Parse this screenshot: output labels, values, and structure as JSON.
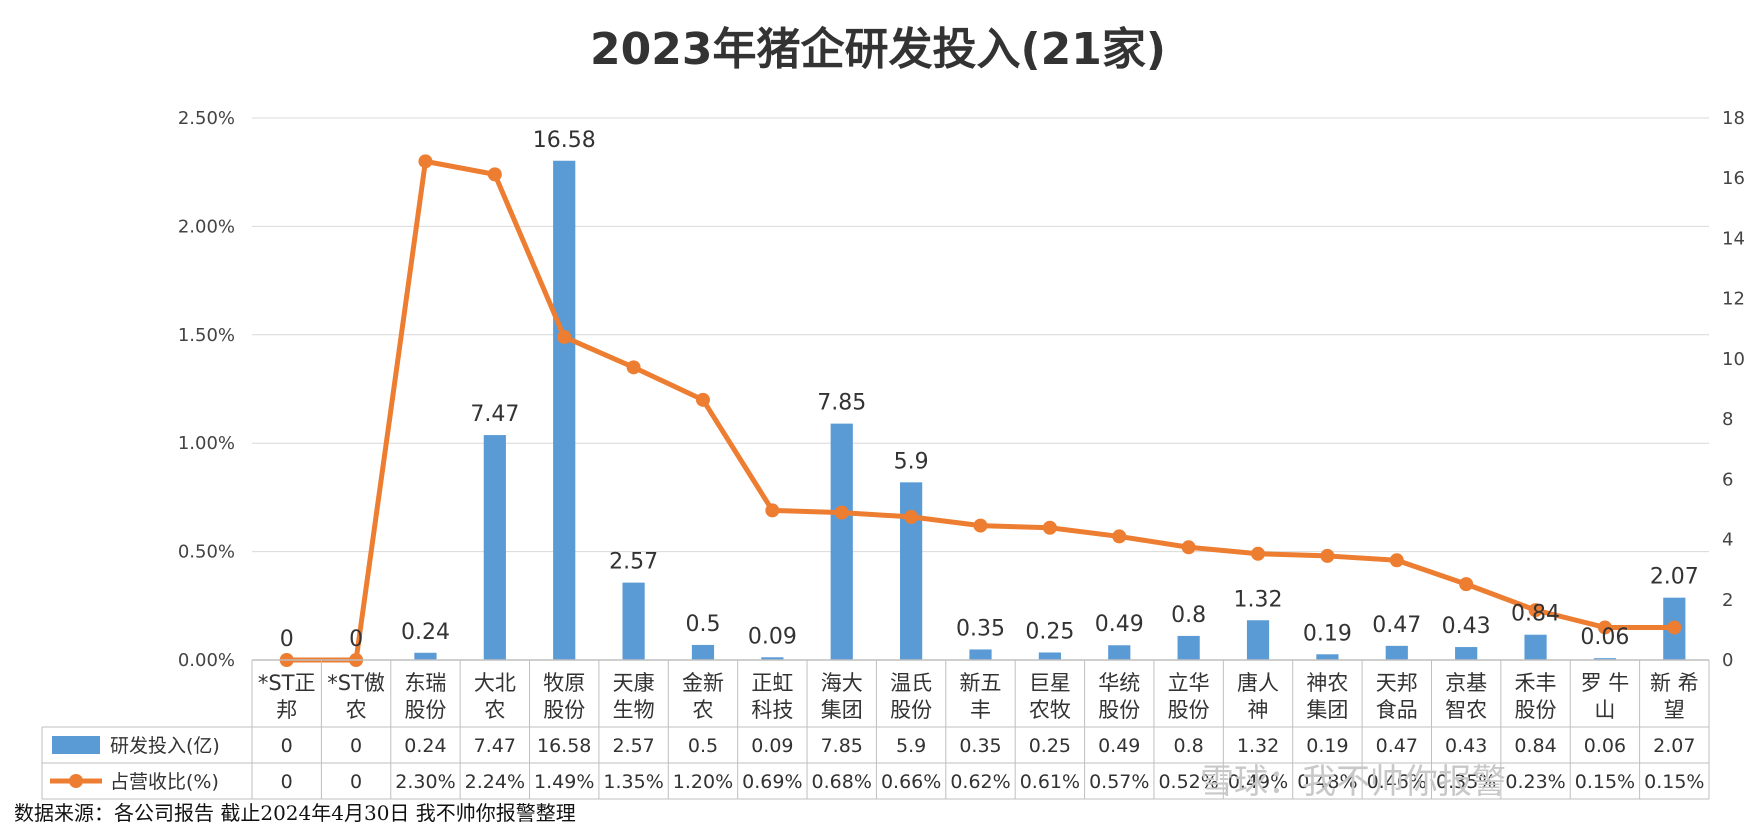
{
  "chart_data": {
    "type": "bar",
    "title": "2023年猪企研发投入(21家)",
    "categories": [
      [
        "*ST正",
        "邦"
      ],
      [
        "*ST傲",
        "农"
      ],
      [
        "东瑞",
        "股份"
      ],
      [
        "大北",
        "农"
      ],
      [
        "牧原",
        "股份"
      ],
      [
        "天康",
        "生物"
      ],
      [
        "金新",
        "农"
      ],
      [
        "正虹",
        "科技"
      ],
      [
        "海大",
        "集团"
      ],
      [
        "温氏",
        "股份"
      ],
      [
        "新五",
        "丰"
      ],
      [
        "巨星",
        "农牧"
      ],
      [
        "华统",
        "股份"
      ],
      [
        "立华",
        "股份"
      ],
      [
        "唐人",
        "神"
      ],
      [
        "神农",
        "集团"
      ],
      [
        "天邦",
        "食品"
      ],
      [
        "京基",
        "智农"
      ],
      [
        "禾丰",
        "股份"
      ],
      [
        "罗 牛",
        "山"
      ],
      [
        "新 希",
        "望"
      ]
    ],
    "series": [
      {
        "name": "研发投入(亿)",
        "type": "bar",
        "axis": "left",
        "color": "#5b9bd5",
        "values": [
          0,
          0,
          0.24,
          7.47,
          16.58,
          2.57,
          0.5,
          0.09,
          7.85,
          5.9,
          0.35,
          0.25,
          0.49,
          0.8,
          1.32,
          0.19,
          0.47,
          0.43,
          0.84,
          0.06,
          2.07
        ],
        "labels": [
          "0",
          "0",
          "0.24",
          "7.47",
          "16.58",
          "2.57",
          "0.5",
          "0.09",
          "7.85",
          "5.9",
          "0.35",
          "0.25",
          "0.49",
          "0.8",
          "1.32",
          "0.19",
          "0.47",
          "0.43",
          "0.84",
          "0.06",
          "2.07"
        ]
      },
      {
        "name": "占营收比(%)",
        "type": "line",
        "axis": "right",
        "color": "#ed7d31",
        "values": [
          0,
          0,
          2.3,
          2.24,
          1.49,
          1.35,
          1.2,
          0.69,
          0.68,
          0.66,
          0.62,
          0.61,
          0.57,
          0.52,
          0.49,
          0.48,
          0.46,
          0.35,
          0.23,
          0.15,
          0.15
        ],
        "labels": [
          "0",
          "0",
          "2.30%",
          "2.24%",
          "1.49%",
          "1.35%",
          "1.20%",
          "0.69%",
          "0.68%",
          "0.66%",
          "0.62%",
          "0.61%",
          "0.57%",
          "0.52%",
          "0.49%",
          "0.48%",
          "0.46%",
          "0.35%",
          "0.23%",
          "0.15%",
          "0.15%"
        ]
      }
    ],
    "left_axis": {
      "ticks": [
        "2.50%",
        "2.00%",
        "1.50%",
        "1.00%",
        "0.50%",
        "0.00%"
      ]
    },
    "right_axis": {
      "ticks": [
        "18",
        "16",
        "14",
        "12",
        "10",
        "8",
        "6",
        "4",
        "2",
        "0"
      ]
    },
    "data_table": true,
    "grid": true
  },
  "source_note": "数据来源：各公司报告 截止2024年4月30日 我不帅你报警整理",
  "watermark": "雪球：我不帅你报警",
  "colors": {
    "bar": "#5b9bd5",
    "line": "#ed7d31",
    "grid": "#d9d9d9",
    "border": "#bfbfbf"
  }
}
